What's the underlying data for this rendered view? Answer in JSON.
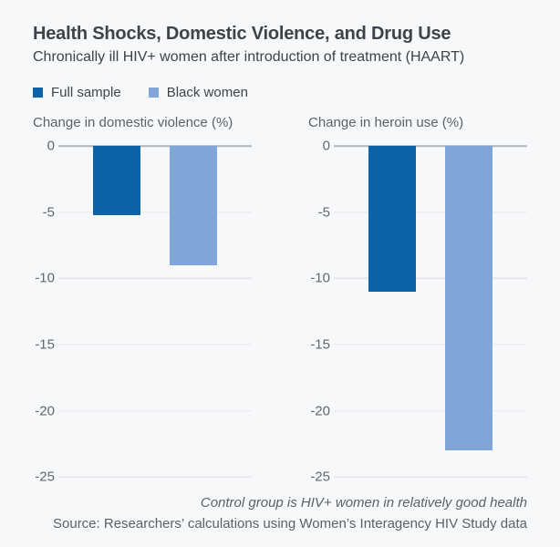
{
  "header": {
    "title": "Health Shocks, Domestic Violence, and Drug Use",
    "subtitle": "Chronically ill HIV+ women after introduction of treatment (HAART)"
  },
  "legend": {
    "items": [
      {
        "label": "Full sample",
        "color": "#0e63a8"
      },
      {
        "label": "Black women",
        "color": "#80a6d9"
      }
    ]
  },
  "chart_data": [
    {
      "type": "bar",
      "title": "Change in domestic violence (%)",
      "categories": [
        "Full sample",
        "Black women"
      ],
      "values": [
        -5.2,
        -9
      ],
      "ylim": [
        -25,
        0
      ],
      "yticks": [
        0,
        -5,
        -10,
        -15,
        -20,
        -25
      ],
      "grid": true,
      "legend_position": "top",
      "bar_colors": [
        "#0e63a8",
        "#80a6d9"
      ]
    },
    {
      "type": "bar",
      "title": "Change in heroin use (%)",
      "categories": [
        "Full sample",
        "Black women"
      ],
      "values": [
        -11,
        -23
      ],
      "ylim": [
        -25,
        0
      ],
      "yticks": [
        0,
        -5,
        -10,
        -15,
        -20,
        -25
      ],
      "grid": true,
      "legend_position": "top",
      "bar_colors": [
        "#0e63a8",
        "#80a6d9"
      ]
    }
  ],
  "footer": {
    "note": "Control group is HIV+ women in relatively good health",
    "source": "Source: Researchers’ calculations using Women’s Interagency HIV Study data"
  },
  "colors": {
    "background": "#f7f8fa",
    "full_sample": "#0e63a8",
    "black_women": "#80a6d9",
    "zero_line": "#b2b6bc",
    "gridline": "#e5e7eb",
    "title_text": "#3e434a",
    "axis_text": "#5a616a"
  }
}
